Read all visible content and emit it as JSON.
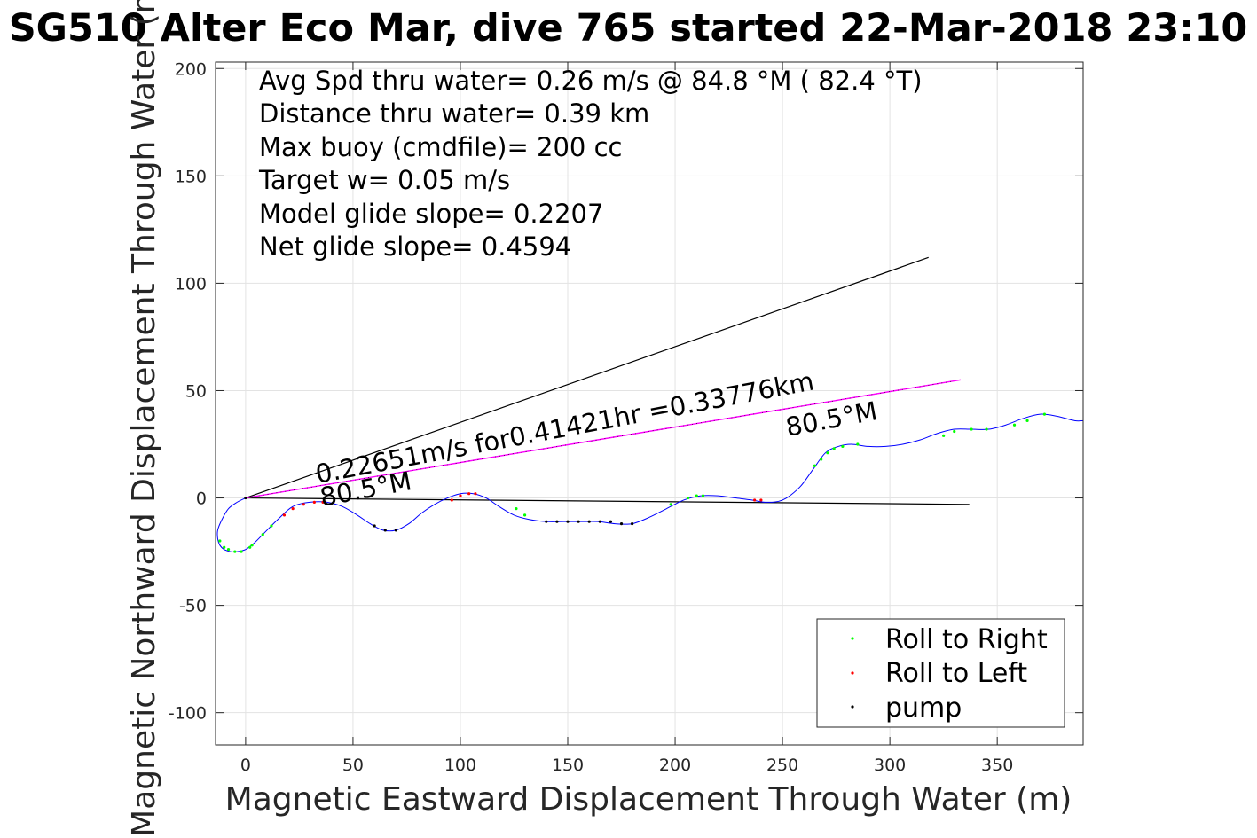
{
  "chart_data": {
    "type": "line",
    "title": "SG510 Alter Eco Mar, dive 765 started 22-Mar-2018 23:10",
    "xlabel": "Magnetic Eastward Displacement Through Water (m)",
    "ylabel": "Magnetic Northward Displacement Through Water (m)",
    "xlim": [
      -14,
      390
    ],
    "ylim": [
      -115,
      203
    ],
    "xticks": [
      "0",
      "50",
      "100",
      "150",
      "200",
      "250",
      "300",
      "350"
    ],
    "yticks": [
      "-100",
      "-50",
      "0",
      "50",
      "100",
      "150",
      "200"
    ],
    "grid": true,
    "legend_position": "bottom-right",
    "info_lines": [
      "Avg Spd thru water=  0.26 m/s @  84.8 °M ( 82.4 °T)",
      "Distance thru water=  0.39 km",
      "Max buoy (cmdfile)= 200 cc",
      "Target w= 0.05 m/s",
      "Model glide slope= 0.2207",
      "Net glide slope= 0.4594"
    ],
    "annotations": {
      "speed_label": "0.22651m/s for0.41421hr =0.33776km",
      "heading_near": "80.5°M",
      "heading_far": "80.5°M"
    },
    "legend": [
      {
        "label": "Roll to Right",
        "color": "#00ff00"
      },
      {
        "label": "Roll to Left",
        "color": "#ff0000"
      },
      {
        "label": "pump",
        "color": "#000000"
      }
    ],
    "colors": {
      "track": "#0000ff",
      "heading_line": "#ff00ff",
      "reference_lines": "#000000"
    },
    "reference_lines": [
      {
        "x": [
          0,
          318
        ],
        "y": [
          0,
          112
        ]
      },
      {
        "x": [
          0,
          337
        ],
        "y": [
          0,
          -3
        ]
      }
    ],
    "heading_line": {
      "x": [
        0,
        333
      ],
      "y": [
        0,
        55
      ]
    },
    "track": {
      "x": [
        0,
        -4,
        -8,
        -11,
        -13,
        -13,
        -12,
        -10,
        -7,
        -4,
        0,
        4,
        8,
        15,
        22,
        30,
        38,
        45,
        52,
        58,
        64,
        70,
        76,
        82,
        88,
        94,
        100,
        106,
        112,
        118,
        125,
        132,
        140,
        148,
        156,
        164,
        172,
        180,
        188,
        196,
        204,
        212,
        220,
        228,
        236,
        242,
        250,
        258,
        264,
        270,
        276,
        282,
        290,
        298,
        306,
        314,
        322,
        330,
        338,
        346,
        354,
        362,
        370,
        378,
        386,
        390
      ],
      "y": [
        0,
        -2,
        -5,
        -10,
        -15,
        -19,
        -22,
        -24,
        -25,
        -25,
        -24,
        -21,
        -17,
        -10,
        -4,
        -2,
        -2,
        -4,
        -8,
        -12,
        -15,
        -15,
        -12,
        -7,
        -3,
        0,
        2,
        2,
        0,
        -4,
        -8,
        -10,
        -11,
        -11,
        -11,
        -11,
        -12,
        -12,
        -9,
        -5,
        -1,
        1,
        1,
        0,
        -1,
        -2,
        -1,
        5,
        13,
        21,
        24,
        25,
        24,
        24,
        25,
        27,
        30,
        32,
        32,
        32,
        34,
        37,
        39,
        38,
        36,
        36
      ]
    },
    "markers": {
      "roll_right": {
        "x": [
          -12,
          -10,
          -8,
          -5,
          -2,
          2,
          3,
          8,
          12,
          126,
          130,
          198,
          206,
          210,
          213,
          265,
          268,
          271,
          274,
          278,
          285,
          325,
          330,
          338,
          345,
          358,
          364,
          372
        ],
        "y": [
          -20,
          -23,
          -24,
          -25,
          -25,
          -23,
          -22,
          -17,
          -13,
          -5,
          -8,
          -3,
          0,
          1,
          1,
          15,
          18,
          21,
          23,
          24,
          25,
          29,
          31,
          32,
          32,
          34,
          36,
          39
        ]
      },
      "roll_left": {
        "x": [
          18,
          22,
          27,
          32,
          36,
          96,
          100,
          104,
          107,
          237,
          240
        ],
        "y": [
          -8,
          -5,
          -3,
          -2,
          -2,
          -1,
          1,
          2,
          2,
          -1,
          -1
        ]
      },
      "pump": {
        "x": [
          0,
          60,
          65,
          70,
          140,
          145,
          150,
          155,
          160,
          165,
          170,
          175,
          180
        ],
        "y": [
          0,
          -13,
          -15,
          -15,
          -11,
          -11,
          -11,
          -11,
          -11,
          -11,
          -11,
          -12,
          -12
        ]
      }
    }
  }
}
